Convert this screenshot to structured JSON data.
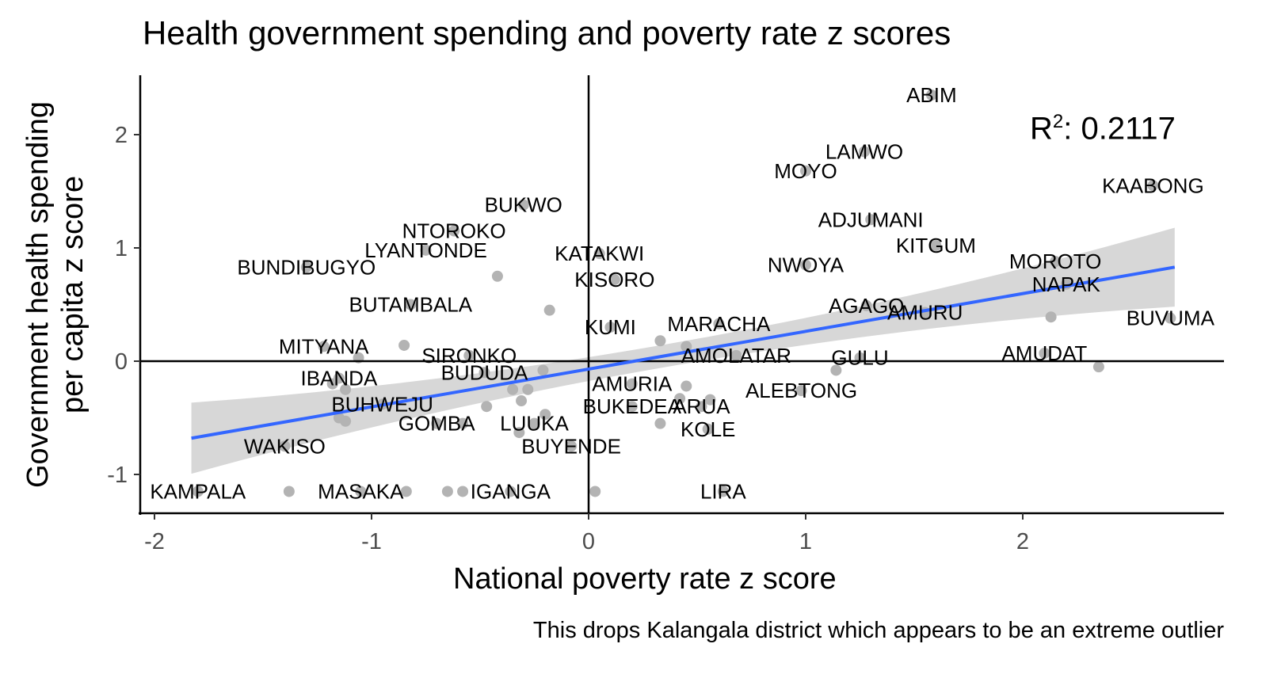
{
  "chart_data": {
    "type": "scatter",
    "title": "Health government spending and poverty rate z scores",
    "xlabel": "National poverty rate z score",
    "ylabel_line1": "Government health spending",
    "ylabel_line2": "per capita z score",
    "caption": "This drops Kalangala district which appears to be an extreme outlier",
    "annotation": {
      "label": "R",
      "sup": "2",
      "value": ": 0.2117"
    },
    "xlim": [
      -2.05,
      2.9
    ],
    "ylim": [
      -1.35,
      2.55
    ],
    "x_ticks": [
      -2,
      -1,
      0,
      1,
      2
    ],
    "y_ticks": [
      -1,
      0,
      1,
      2
    ],
    "grid": false,
    "reference_lines": {
      "x": 0,
      "y": 0
    },
    "trend": {
      "x_start": -1.83,
      "y_start": -0.68,
      "x_end": 2.7,
      "y_end": 0.83
    },
    "colors": {
      "points": "#b3b3b3",
      "trend": "#3366ff",
      "band": "#d3d3d3",
      "axis": "#000000"
    },
    "points": [
      {
        "x": 1.58,
        "y": 2.35,
        "label": "ABIM"
      },
      {
        "x": 1.27,
        "y": 1.85,
        "label": "LAMWO"
      },
      {
        "x": 1.0,
        "y": 1.68,
        "label": "MOYO"
      },
      {
        "x": 2.6,
        "y": 1.55,
        "label": "KAABONG"
      },
      {
        "x": -0.3,
        "y": 1.38,
        "label": "BUKWO"
      },
      {
        "x": 1.3,
        "y": 1.25,
        "label": "ADJUMANI"
      },
      {
        "x": -0.62,
        "y": 1.15,
        "label": "NTOROKO"
      },
      {
        "x": 1.6,
        "y": 1.02,
        "label": "KITGUM"
      },
      {
        "x": -0.75,
        "y": 0.98,
        "label": "LYANTONDE"
      },
      {
        "x": 0.05,
        "y": 0.95,
        "label": "KATAKWI"
      },
      {
        "x": 2.15,
        "y": 0.88,
        "label": "MOROTO"
      },
      {
        "x": 1.0,
        "y": 0.85,
        "label": "NWOYA"
      },
      {
        "x": -1.3,
        "y": 0.83,
        "label": "BUNDIBUGYO"
      },
      {
        "x": 0.12,
        "y": 0.72,
        "label": "KISORO"
      },
      {
        "x": 2.2,
        "y": 0.68,
        "label": "NAPAK"
      },
      {
        "x": -0.82,
        "y": 0.5,
        "label": "BUTAMBALA"
      },
      {
        "x": 1.28,
        "y": 0.49,
        "label": "AGAGO"
      },
      {
        "x": 1.55,
        "y": 0.43,
        "label": "AMURU"
      },
      {
        "x": 2.68,
        "y": 0.38,
        "label": "BUVUMA"
      },
      {
        "x": 0.1,
        "y": 0.3,
        "label": "KUMI"
      },
      {
        "x": 0.6,
        "y": 0.33,
        "label": "MARACHA"
      },
      {
        "x": -1.22,
        "y": 0.13,
        "label": "MITYANA"
      },
      {
        "x": -0.55,
        "y": 0.05,
        "label": "SIRONKO"
      },
      {
        "x": 0.68,
        "y": 0.05,
        "label": "AMOLATAR"
      },
      {
        "x": 2.1,
        "y": 0.07,
        "label": "AMUDAT"
      },
      {
        "x": 1.25,
        "y": 0.03,
        "label": "GULU"
      },
      {
        "x": -1.15,
        "y": -0.15,
        "label": "IBANDA"
      },
      {
        "x": -0.48,
        "y": -0.1,
        "label": "BUDUDA"
      },
      {
        "x": 0.2,
        "y": -0.2,
        "label": "AMURIA"
      },
      {
        "x": 0.98,
        "y": -0.26,
        "label": "ALEBTONG"
      },
      {
        "x": -0.95,
        "y": -0.38,
        "label": "BUHWEJU"
      },
      {
        "x": 0.2,
        "y": -0.4,
        "label": "BUKEDEA"
      },
      {
        "x": 0.52,
        "y": -0.4,
        "label": "ARUA"
      },
      {
        "x": -0.7,
        "y": -0.55,
        "label": "GOMBA"
      },
      {
        "x": -0.25,
        "y": -0.55,
        "label": "LUUKA"
      },
      {
        "x": 0.55,
        "y": -0.6,
        "label": "KOLE"
      },
      {
        "x": -1.4,
        "y": -0.75,
        "label": "WAKISO"
      },
      {
        "x": -0.08,
        "y": -0.75,
        "label": "BUYENDE"
      },
      {
        "x": -1.8,
        "y": -1.15,
        "label": "KAMPALA"
      },
      {
        "x": -1.05,
        "y": -1.15,
        "label": "MASAKA"
      },
      {
        "x": -0.36,
        "y": -1.15,
        "label": "IGANGA"
      },
      {
        "x": 0.62,
        "y": -1.15,
        "label": "LIRA"
      },
      {
        "x": -0.42,
        "y": 0.75,
        "label": ""
      },
      {
        "x": -0.18,
        "y": 0.45,
        "label": ""
      },
      {
        "x": -0.85,
        "y": 0.14,
        "label": ""
      },
      {
        "x": -1.06,
        "y": 0.03,
        "label": ""
      },
      {
        "x": -0.21,
        "y": -0.08,
        "label": ""
      },
      {
        "x": -1.18,
        "y": -0.2,
        "label": ""
      },
      {
        "x": -1.12,
        "y": -0.25,
        "label": ""
      },
      {
        "x": -0.35,
        "y": -0.25,
        "label": ""
      },
      {
        "x": -0.28,
        "y": -0.25,
        "label": ""
      },
      {
        "x": -0.31,
        "y": -0.35,
        "label": ""
      },
      {
        "x": -0.47,
        "y": -0.4,
        "label": ""
      },
      {
        "x": -0.2,
        "y": -0.47,
        "label": ""
      },
      {
        "x": -1.15,
        "y": -0.5,
        "label": ""
      },
      {
        "x": -1.12,
        "y": -0.53,
        "label": ""
      },
      {
        "x": -0.58,
        "y": -0.55,
        "label": ""
      },
      {
        "x": -0.32,
        "y": -0.63,
        "label": ""
      },
      {
        "x": 0.33,
        "y": 0.18,
        "label": ""
      },
      {
        "x": 0.45,
        "y": 0.13,
        "label": ""
      },
      {
        "x": 0.45,
        "y": -0.22,
        "label": ""
      },
      {
        "x": 0.42,
        "y": -0.33,
        "label": ""
      },
      {
        "x": 0.56,
        "y": -0.34,
        "label": ""
      },
      {
        "x": 0.33,
        "y": -0.55,
        "label": ""
      },
      {
        "x": 1.14,
        "y": -0.08,
        "label": ""
      },
      {
        "x": 2.13,
        "y": 0.39,
        "label": ""
      },
      {
        "x": 2.35,
        "y": -0.05,
        "label": ""
      },
      {
        "x": -1.38,
        "y": -1.15,
        "label": ""
      },
      {
        "x": -0.84,
        "y": -1.15,
        "label": ""
      },
      {
        "x": -0.65,
        "y": -1.15,
        "label": ""
      },
      {
        "x": -0.58,
        "y": -1.15,
        "label": ""
      },
      {
        "x": 0.03,
        "y": -1.15,
        "label": ""
      }
    ]
  }
}
